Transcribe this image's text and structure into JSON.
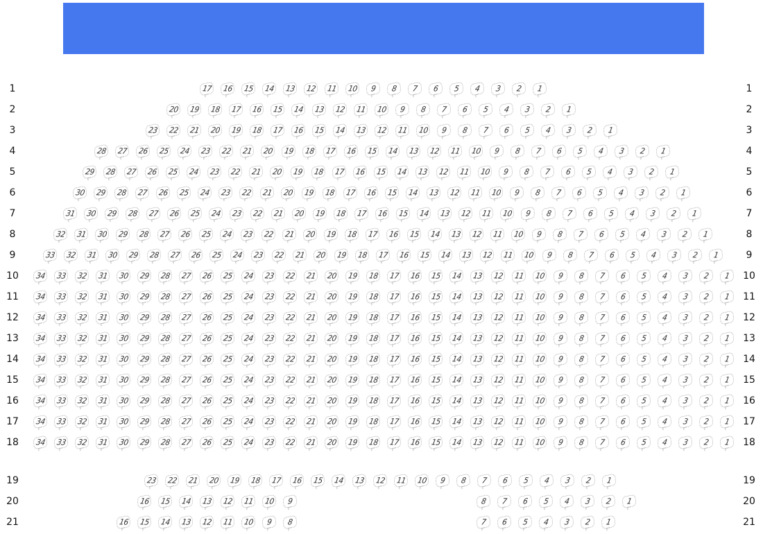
{
  "stage": {
    "color": "#4577ee"
  },
  "rows": [
    {
      "label": "1",
      "sections": [
        {
          "from": 17,
          "to": 1
        }
      ]
    },
    {
      "label": "2",
      "sections": [
        {
          "from": 20,
          "to": 1
        }
      ]
    },
    {
      "label": "3",
      "sections": [
        {
          "from": 23,
          "to": 1
        }
      ]
    },
    {
      "label": "4",
      "sections": [
        {
          "from": 28,
          "to": 1
        }
      ]
    },
    {
      "label": "5",
      "sections": [
        {
          "from": 29,
          "to": 1
        }
      ]
    },
    {
      "label": "6",
      "sections": [
        {
          "from": 30,
          "to": 1
        }
      ]
    },
    {
      "label": "7",
      "sections": [
        {
          "from": 31,
          "to": 1
        }
      ]
    },
    {
      "label": "8",
      "sections": [
        {
          "from": 32,
          "to": 1
        }
      ]
    },
    {
      "label": "9",
      "sections": [
        {
          "from": 33,
          "to": 1
        }
      ]
    },
    {
      "label": "10",
      "sections": [
        {
          "from": 34,
          "to": 1
        }
      ]
    },
    {
      "label": "11",
      "sections": [
        {
          "from": 34,
          "to": 1
        }
      ]
    },
    {
      "label": "12",
      "sections": [
        {
          "from": 34,
          "to": 1
        }
      ]
    },
    {
      "label": "13",
      "sections": [
        {
          "from": 34,
          "to": 1
        }
      ]
    },
    {
      "label": "14",
      "sections": [
        {
          "from": 34,
          "to": 1
        }
      ]
    },
    {
      "label": "15",
      "sections": [
        {
          "from": 34,
          "to": 1
        }
      ]
    },
    {
      "label": "16",
      "sections": [
        {
          "from": 34,
          "to": 1
        }
      ]
    },
    {
      "label": "17",
      "sections": [
        {
          "from": 34,
          "to": 1
        }
      ]
    },
    {
      "label": "18",
      "sections": [
        {
          "from": 34,
          "to": 1
        }
      ]
    },
    {
      "label": "19",
      "sections": [
        {
          "from": 23,
          "to": 1
        }
      ]
    },
    {
      "label": "20",
      "sections": [
        {
          "from": 16,
          "to": 9
        },
        {
          "from": 8,
          "to": 1
        }
      ]
    },
    {
      "label": "21",
      "sections": [
        {
          "from": 16,
          "to": 8
        },
        {
          "from": 7,
          "to": 1
        }
      ]
    }
  ]
}
